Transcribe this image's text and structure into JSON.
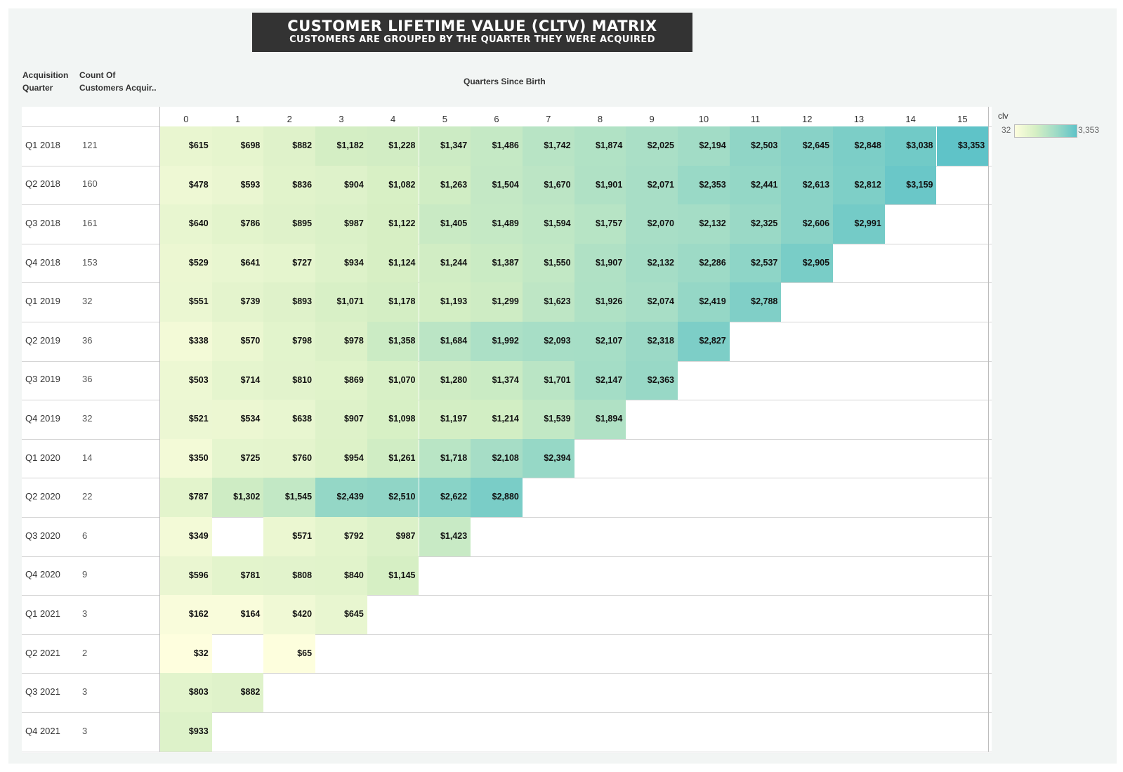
{
  "header": {
    "title": "CUSTOMER LIFETIME VALUE (CLTV) MATRIX",
    "subtitle": "CUSTOMERS ARE GROUPED BY THE QUARTER THEY WERE ACQUIRED"
  },
  "columns": {
    "acq_line1": "Acquisition",
    "acq_line2": "Quarter",
    "count_line1": "Count Of",
    "count_line2": "Customers Acquir..",
    "quarters_label": "Quarters Since Birth"
  },
  "legend": {
    "title": "clv",
    "min": "32",
    "max": "3,353",
    "colors": [
      "#fefede",
      "#d6efc4",
      "#9fdbc6",
      "#5fc3c8"
    ]
  },
  "chart_data": {
    "type": "heatmap",
    "title": "CUSTOMER LIFETIME VALUE (CLTV) MATRIX",
    "subtitle": "CUSTOMERS ARE GROUPED BY THE QUARTER THEY WERE ACQUIRED",
    "xlabel": "Quarters Since Birth",
    "x": [
      0,
      1,
      2,
      3,
      4,
      5,
      6,
      7,
      8,
      9,
      10,
      11,
      12,
      13,
      14,
      15
    ],
    "value_label": "clv",
    "color_range": [
      32,
      3353
    ],
    "rows": [
      {
        "quarter": "Q1 2018",
        "count": 121,
        "values": [
          615,
          698,
          882,
          1182,
          1228,
          1347,
          1486,
          1742,
          1874,
          2025,
          2194,
          2503,
          2645,
          2848,
          3038,
          3353
        ]
      },
      {
        "quarter": "Q2 2018",
        "count": 160,
        "values": [
          478,
          593,
          836,
          904,
          1082,
          1263,
          1504,
          1670,
          1901,
          2071,
          2353,
          2441,
          2613,
          2812,
          3159
        ]
      },
      {
        "quarter": "Q3 2018",
        "count": 161,
        "values": [
          640,
          786,
          895,
          987,
          1122,
          1405,
          1489,
          1594,
          1757,
          2070,
          2132,
          2325,
          2606,
          2991
        ]
      },
      {
        "quarter": "Q4 2018",
        "count": 153,
        "values": [
          529,
          641,
          727,
          934,
          1124,
          1244,
          1387,
          1550,
          1907,
          2132,
          2286,
          2537,
          2905
        ]
      },
      {
        "quarter": "Q1 2019",
        "count": 32,
        "values": [
          551,
          739,
          893,
          1071,
          1178,
          1193,
          1299,
          1623,
          1926,
          2074,
          2419,
          2788
        ]
      },
      {
        "quarter": "Q2 2019",
        "count": 36,
        "values": [
          338,
          570,
          798,
          978,
          1358,
          1684,
          1992,
          2093,
          2107,
          2318,
          2827
        ]
      },
      {
        "quarter": "Q3 2019",
        "count": 36,
        "values": [
          503,
          714,
          810,
          869,
          1070,
          1280,
          1374,
          1701,
          2147,
          2363
        ]
      },
      {
        "quarter": "Q4 2019",
        "count": 32,
        "values": [
          521,
          534,
          638,
          907,
          1098,
          1197,
          1214,
          1539,
          1894
        ]
      },
      {
        "quarter": "Q1 2020",
        "count": 14,
        "values": [
          350,
          725,
          760,
          954,
          1261,
          1718,
          2108,
          2394
        ]
      },
      {
        "quarter": "Q2 2020",
        "count": 22,
        "values": [
          787,
          1302,
          1545,
          2439,
          2510,
          2622,
          2880
        ]
      },
      {
        "quarter": "Q3 2020",
        "count": 6,
        "values": [
          349,
          null,
          571,
          792,
          987,
          1423
        ]
      },
      {
        "quarter": "Q4 2020",
        "count": 9,
        "values": [
          596,
          781,
          808,
          840,
          1145
        ]
      },
      {
        "quarter": "Q1 2021",
        "count": 3,
        "values": [
          162,
          164,
          420,
          645
        ]
      },
      {
        "quarter": "Q2 2021",
        "count": 2,
        "values": [
          32,
          null,
          65
        ]
      },
      {
        "quarter": "Q3 2021",
        "count": 3,
        "values": [
          803,
          882
        ]
      },
      {
        "quarter": "Q4 2021",
        "count": 3,
        "values": [
          933
        ]
      }
    ]
  }
}
